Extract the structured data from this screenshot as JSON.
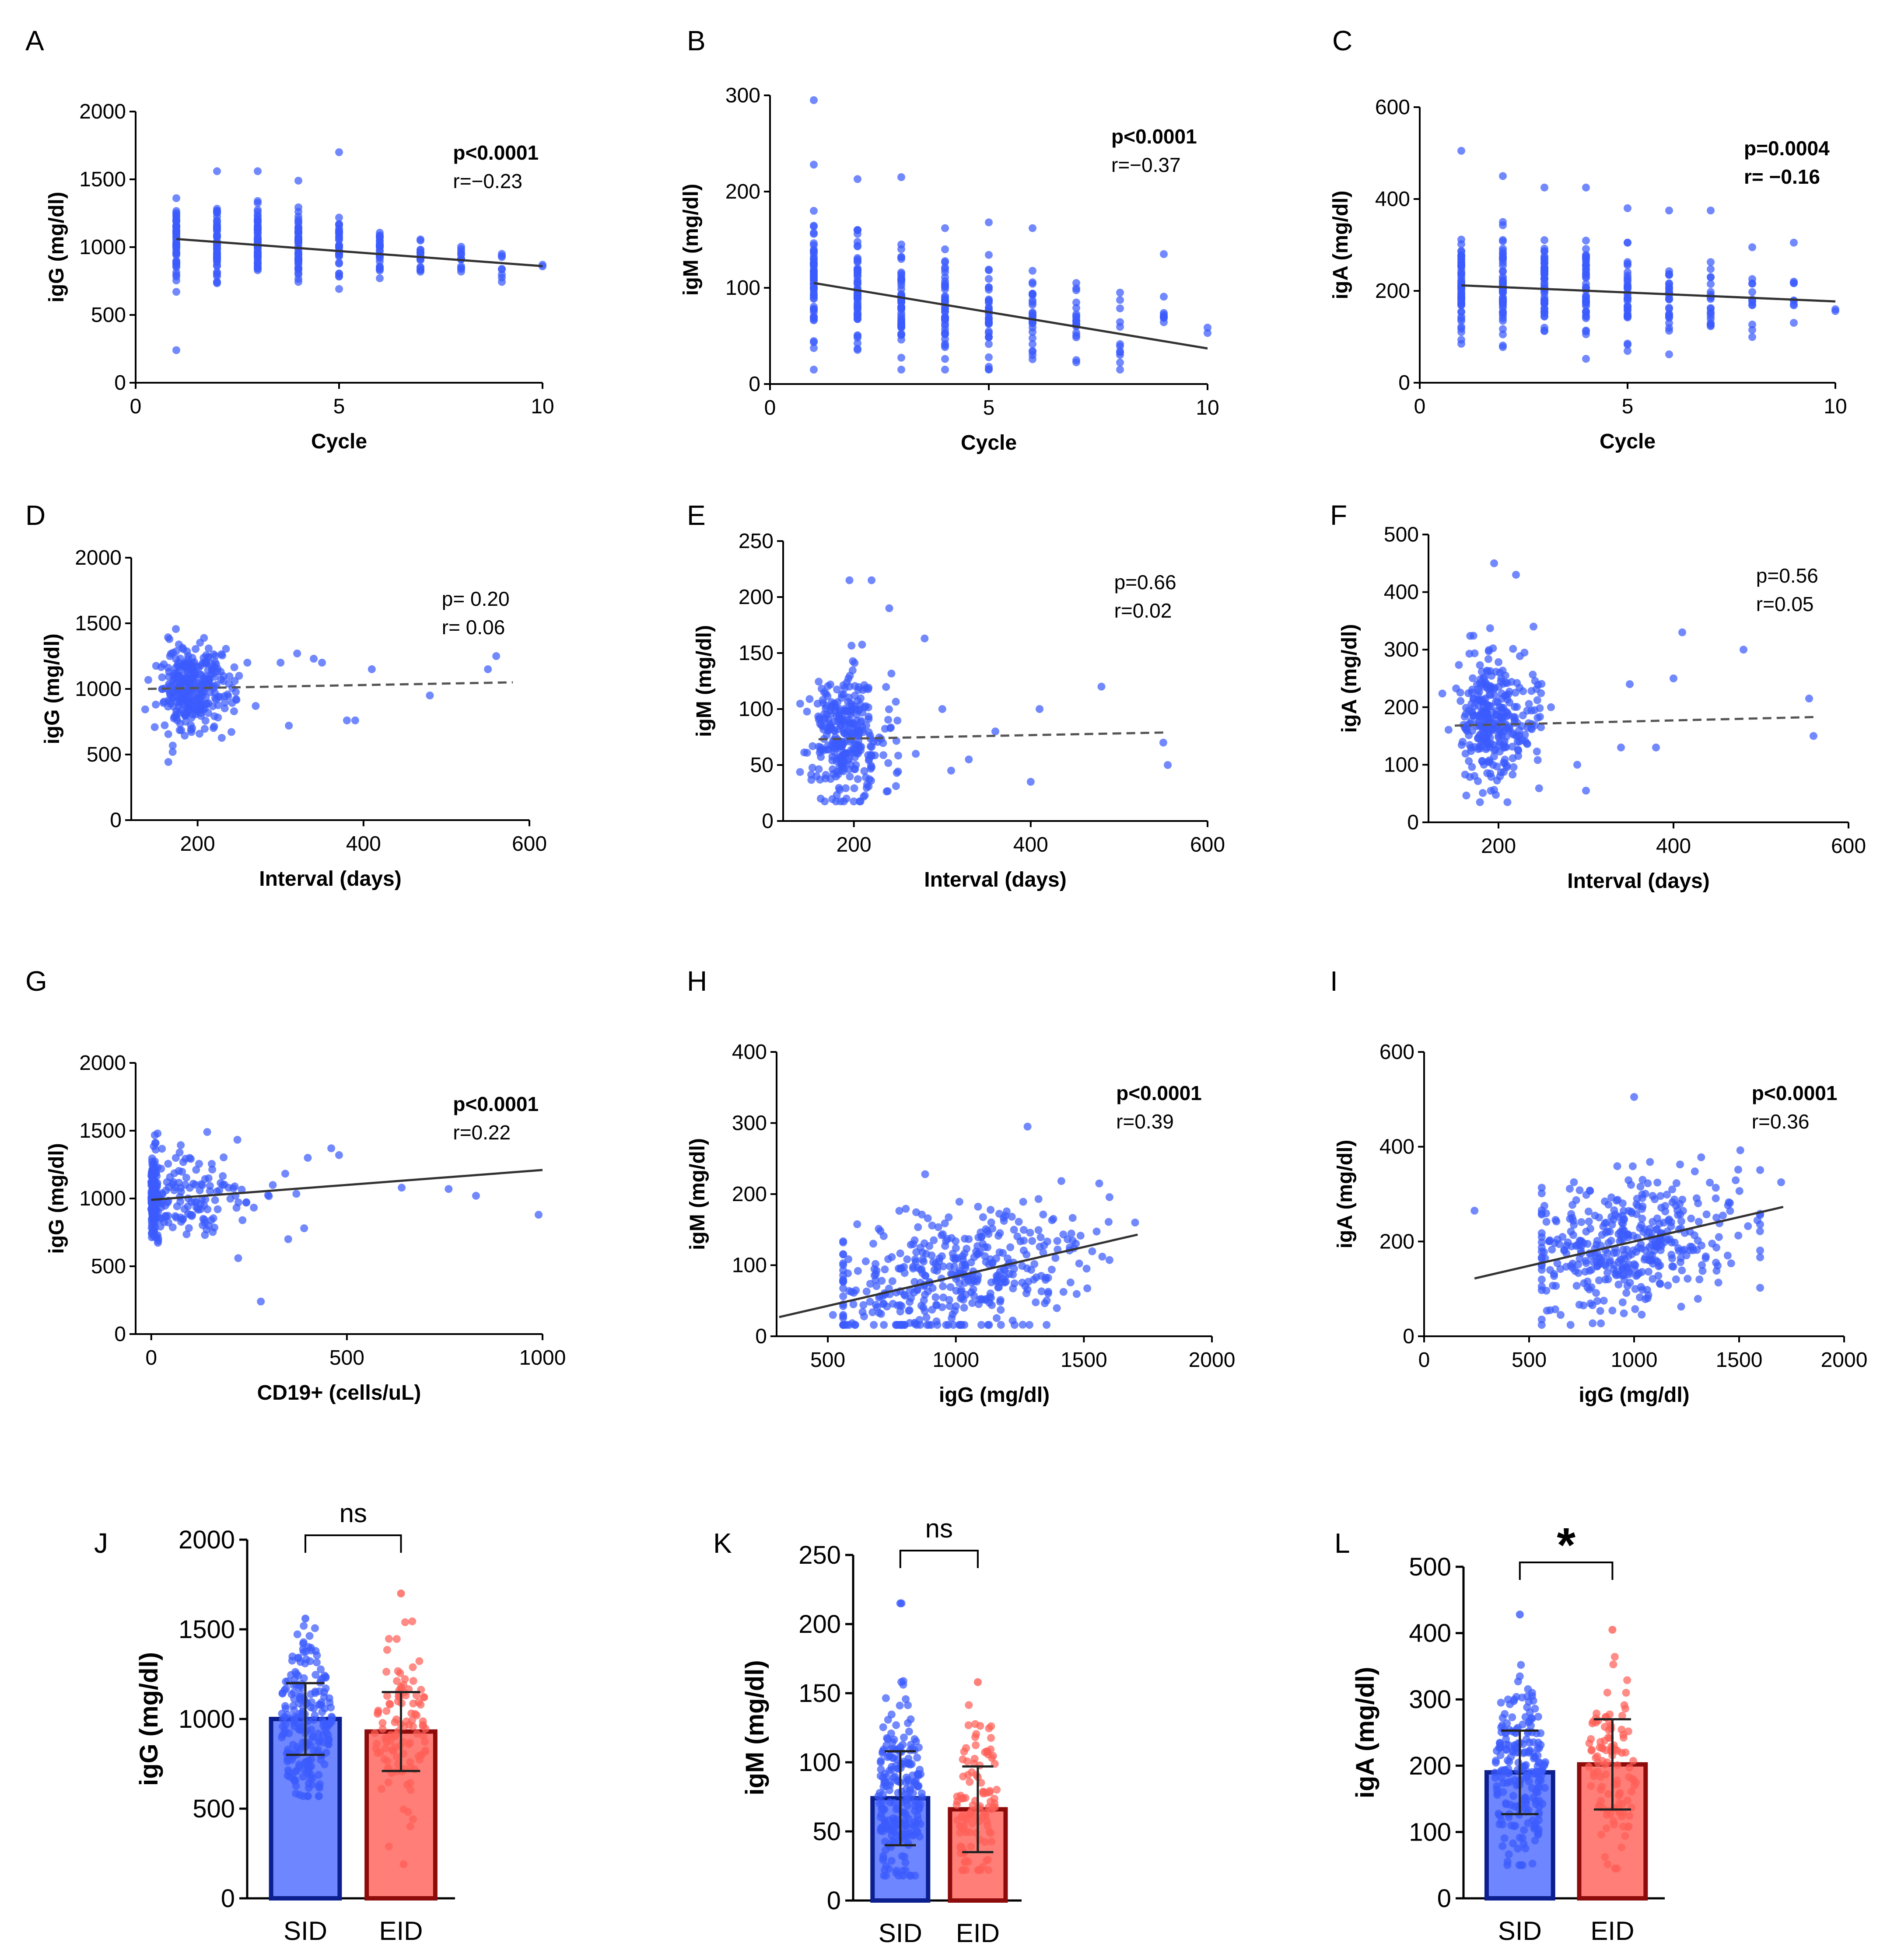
{
  "colors": {
    "sid_point": "#3b5bfd",
    "sid_bar": "#6e86ff",
    "sid_edge": "#0b1f8f",
    "eid_point": "#ff5f57",
    "eid_bar": "#ff7f78",
    "eid_edge": "#8e0b0b",
    "fit_line": "#333333",
    "fit_dashed": "#555555"
  },
  "chart_data": [
    {
      "id": "A",
      "type": "scatter",
      "panel_label": "A",
      "xlabel": "Cycle",
      "ylabel": "igG (mg/dl)",
      "xlim": [
        0,
        10
      ],
      "ylim": [
        0,
        2000
      ],
      "xticks": [
        0,
        5,
        10
      ],
      "yticks": [
        0,
        500,
        1000,
        1500,
        2000
      ],
      "fit": {
        "y_start": 1060,
        "y_end": 860,
        "x_start": 1,
        "x_end": 10,
        "dashed": false
      },
      "stat_p": "p<0.0001",
      "stat_r": "r=−0.23",
      "p_bold": true,
      "r_bold": false,
      "scatter": {
        "mode": "cycle",
        "xs": [
          1,
          2,
          3,
          4,
          5,
          6,
          7,
          8,
          9,
          10
        ],
        "center": [
          1060,
          1040,
          1020,
          1000,
          980,
          960,
          940,
          920,
          900,
          870
        ],
        "spread": [
          330,
          330,
          320,
          300,
          280,
          250,
          220,
          180,
          160,
          20
        ],
        "n": [
          60,
          60,
          55,
          45,
          35,
          28,
          20,
          12,
          8,
          2
        ],
        "outliers": [
          [
            1,
            240
          ],
          [
            2,
            1560
          ],
          [
            3,
            1560
          ],
          [
            5,
            1700
          ],
          [
            4,
            1490
          ]
        ]
      }
    },
    {
      "id": "B",
      "type": "scatter",
      "panel_label": "B",
      "xlabel": "Cycle",
      "ylabel": "igM (mg/dl)",
      "xlim": [
        0,
        10
      ],
      "ylim": [
        0,
        300
      ],
      "xticks": [
        0,
        5,
        10
      ],
      "yticks": [
        0,
        100,
        200,
        300
      ],
      "fit": {
        "y_start": 105,
        "y_end": 37,
        "x_start": 1,
        "x_end": 10,
        "dashed": false
      },
      "stat_p": "p<0.0001",
      "stat_r": "r=−0.37",
      "p_bold": true,
      "r_bold": false,
      "scatter": {
        "mode": "cycle",
        "xs": [
          1,
          2,
          3,
          4,
          5,
          6,
          7,
          8,
          9,
          10
        ],
        "center": [
          110,
          95,
          85,
          80,
          75,
          70,
          60,
          55,
          60,
          55
        ],
        "spread": [
          70,
          65,
          60,
          60,
          60,
          55,
          45,
          40,
          35,
          8
        ],
        "n": [
          60,
          60,
          55,
          45,
          35,
          28,
          20,
          12,
          8,
          2
        ],
        "outliers": [
          [
            1,
            295
          ],
          [
            1,
            228
          ],
          [
            2,
            213
          ],
          [
            3,
            215
          ],
          [
            4,
            162
          ],
          [
            5,
            168
          ],
          [
            6,
            162
          ],
          [
            9,
            135
          ]
        ]
      }
    },
    {
      "id": "C",
      "type": "scatter",
      "panel_label": "C",
      "xlabel": "Cycle",
      "ylabel": "igA (mg/dl)",
      "xlim": [
        0,
        10
      ],
      "ylim": [
        0,
        600
      ],
      "xticks": [
        0,
        5,
        10
      ],
      "yticks": [
        0,
        200,
        400,
        600
      ],
      "fit": {
        "y_start": 212,
        "y_end": 177,
        "x_start": 1,
        "x_end": 10,
        "dashed": false
      },
      "stat_p": "p=0.0004",
      "stat_r": "r= −0.16",
      "p_bold": true,
      "r_bold": true,
      "scatter": {
        "mode": "cycle",
        "xs": [
          1,
          2,
          3,
          4,
          5,
          6,
          7,
          8,
          9,
          10
        ],
        "center": [
          210,
          210,
          200,
          195,
          195,
          190,
          185,
          180,
          175,
          170
        ],
        "spread": [
          140,
          140,
          130,
          120,
          110,
          100,
          90,
          80,
          70,
          25
        ],
        "n": [
          60,
          60,
          55,
          45,
          35,
          28,
          20,
          12,
          8,
          2
        ],
        "outliers": [
          [
            1,
            505
          ],
          [
            2,
            450
          ],
          [
            3,
            425
          ],
          [
            4,
            425
          ],
          [
            5,
            380
          ],
          [
            6,
            375
          ],
          [
            7,
            375
          ],
          [
            8,
            295
          ],
          [
            9,
            305
          ]
        ]
      }
    },
    {
      "id": "D",
      "type": "scatter",
      "panel_label": "D",
      "xlabel": "Interval (days)",
      "ylabel": "igG (mg/dl)",
      "xlim": [
        120,
        600
      ],
      "ylim": [
        0,
        2000
      ],
      "xticks": [
        200,
        400,
        600
      ],
      "yticks": [
        0,
        500,
        1000,
        1500,
        2000
      ],
      "fit": {
        "y_start": 1000,
        "y_end": 1050,
        "x_start": 140,
        "x_end": 580,
        "dashed": true
      },
      "stat_p": "p= 0.20",
      "stat_r": "r= 0.06",
      "p_bold": false,
      "r_bold": false,
      "scatter": {
        "mode": "interval",
        "ycenter": 1000,
        "yspread": 330,
        "n": 320,
        "tail": [
          [
            250,
            1100
          ],
          [
            300,
            1200
          ],
          [
            320,
            1270
          ],
          [
            340,
            1230
          ],
          [
            350,
            1200
          ],
          [
            380,
            760
          ],
          [
            390,
            760
          ],
          [
            410,
            1150
          ],
          [
            480,
            950
          ],
          [
            550,
            1150
          ],
          [
            560,
            1250
          ],
          [
            270,
            870
          ],
          [
            310,
            720
          ],
          [
            260,
            1200
          ]
        ]
      }
    },
    {
      "id": "E",
      "type": "scatter",
      "panel_label": "E",
      "xlabel": "Interval (days)",
      "ylabel": "igM (mg/dl)",
      "xlim": [
        120,
        600
      ],
      "ylim": [
        0,
        250
      ],
      "xticks": [
        200,
        400,
        600
      ],
      "yticks": [
        0,
        50,
        100,
        150,
        200,
        250
      ],
      "fit": {
        "y_start": 73,
        "y_end": 79,
        "x_start": 160,
        "x_end": 550,
        "dashed": true
      },
      "stat_p": "p=0.66",
      "stat_r": "r=0.02",
      "p_bold": false,
      "r_bold": false,
      "scatter": {
        "mode": "interval",
        "ycenter": 75,
        "yspread": 55,
        "n": 320,
        "tail": [
          [
            195,
            215
          ],
          [
            220,
            215
          ],
          [
            240,
            190
          ],
          [
            280,
            163
          ],
          [
            300,
            100
          ],
          [
            330,
            55
          ],
          [
            360,
            80
          ],
          [
            400,
            35
          ],
          [
            410,
            100
          ],
          [
            480,
            120
          ],
          [
            550,
            70
          ],
          [
            555,
            50
          ],
          [
            270,
            60
          ],
          [
            310,
            45
          ]
        ]
      }
    },
    {
      "id": "F",
      "type": "scatter",
      "panel_label": "F",
      "xlabel": "Interval (days)",
      "ylabel": "igA (mg/dl)",
      "xlim": [
        120,
        600
      ],
      "ylim": [
        0,
        500
      ],
      "xticks": [
        200,
        400,
        600
      ],
      "yticks": [
        0,
        100,
        200,
        300,
        400,
        500
      ],
      "fit": {
        "y_start": 168,
        "y_end": 183,
        "x_start": 150,
        "x_end": 565,
        "dashed": true
      },
      "stat_p": "p=0.56",
      "stat_r": "r=0.05",
      "p_bold": false,
      "r_bold": false,
      "scatter": {
        "mode": "interval",
        "ycenter": 180,
        "yspread": 110,
        "n": 320,
        "tail": [
          [
            195,
            450
          ],
          [
            220,
            430
          ],
          [
            240,
            340
          ],
          [
            260,
            200
          ],
          [
            300,
            55
          ],
          [
            340,
            130
          ],
          [
            350,
            240
          ],
          [
            380,
            130
          ],
          [
            400,
            250
          ],
          [
            410,
            330
          ],
          [
            480,
            300
          ],
          [
            555,
            215
          ],
          [
            560,
            150
          ],
          [
            290,
            100
          ]
        ]
      }
    },
    {
      "id": "G",
      "type": "scatter",
      "panel_label": "G",
      "xlabel": "CD19+ (cells/uL)",
      "ylabel": "igG (mg/dl)",
      "xlim": [
        -40,
        1000
      ],
      "ylim": [
        0,
        2000
      ],
      "xticks": [
        0,
        500,
        1000
      ],
      "yticks": [
        0,
        500,
        1000,
        1500,
        2000
      ],
      "fit": {
        "y_start": 990,
        "y_end": 1210,
        "x_start": 0,
        "x_end": 1000,
        "dashed": false
      },
      "stat_p": "p<0.0001",
      "stat_r": "r=0.22",
      "p_bold": true,
      "r_bold": false,
      "scatter": {
        "mode": "cd19",
        "ycenter": 1000,
        "yspread": 330,
        "n": 300,
        "tail": [
          [
            460,
            1370
          ],
          [
            480,
            1320
          ],
          [
            640,
            1080
          ],
          [
            760,
            1070
          ],
          [
            830,
            1020
          ],
          [
            990,
            880
          ],
          [
            280,
            240
          ],
          [
            350,
            700
          ],
          [
            400,
            1300
          ]
        ]
      }
    },
    {
      "id": "H",
      "type": "scatter",
      "panel_label": "H",
      "xlabel": "igG (mg/dl)",
      "ylabel": "igM (mg/dl)",
      "xlim": [
        300,
        2000
      ],
      "ylim": [
        0,
        400
      ],
      "xticks": [
        500,
        1000,
        1500,
        2000
      ],
      "yticks": [
        0,
        100,
        200,
        300,
        400
      ],
      "fit": {
        "y_start": 27,
        "y_end": 143,
        "x_start": 310,
        "x_end": 1710,
        "dashed": false
      },
      "stat_p": "p<0.0001",
      "stat_r": "r=0.39",
      "p_bold": true,
      "r_bold": false,
      "scatter": {
        "mode": "corr",
        "xcenter": 1000,
        "xspread": 260,
        "slope": 0.083,
        "intercept": 0,
        "yspread": 45,
        "n": 420,
        "tail": [
          [
            1280,
            295
          ],
          [
            1560,
            215
          ],
          [
            880,
            228
          ],
          [
            1700,
            160
          ],
          [
            560,
            30
          ],
          [
            600,
            45
          ],
          [
            520,
            30
          ]
        ]
      }
    },
    {
      "id": "I",
      "type": "scatter",
      "panel_label": "I",
      "xlabel": "igG (mg/dl)",
      "ylabel": "igA (mg/dl)",
      "xlim": [
        0,
        2000
      ],
      "ylim": [
        0,
        600
      ],
      "xticks": [
        0,
        500,
        1000,
        1500,
        2000
      ],
      "yticks": [
        0,
        200,
        400,
        600
      ],
      "fit": {
        "y_start": 122,
        "y_end": 273,
        "x_start": 240,
        "x_end": 1710,
        "dashed": false
      },
      "stat_p": "p<0.0001",
      "stat_r": "r=0.36",
      "p_bold": true,
      "r_bold": false,
      "scatter": {
        "mode": "corr",
        "xcenter": 1000,
        "xspread": 260,
        "slope": 0.103,
        "intercept": 97,
        "yspread": 70,
        "n": 420,
        "tail": [
          [
            240,
            265
          ],
          [
            1000,
            505
          ],
          [
            1700,
            325
          ],
          [
            600,
            55
          ],
          [
            650,
            45
          ]
        ]
      }
    },
    {
      "id": "J",
      "type": "bar",
      "panel_label": "J",
      "categories": [
        "SID",
        "EID"
      ],
      "ylabel": "igG (mg/dl)",
      "ylim": [
        0,
        2000
      ],
      "yticks": [
        0,
        500,
        1000,
        1500,
        2000
      ],
      "means": [
        1000,
        930
      ],
      "sd": [
        200,
        220
      ],
      "ranges": [
        [
          570,
          1560
        ],
        [
          190,
          1700
        ]
      ],
      "n": [
        220,
        110
      ],
      "significance": "ns"
    },
    {
      "id": "K",
      "type": "bar",
      "panel_label": "K",
      "categories": [
        "SID",
        "EID"
      ],
      "ylabel": "igM (mg/dl)",
      "ylim": [
        0,
        250
      ],
      "yticks": [
        0,
        50,
        100,
        150,
        200,
        250
      ],
      "means": [
        74,
        66
      ],
      "sd": [
        34,
        31
      ],
      "ranges": [
        [
          18,
          215
        ],
        [
          22,
          158
        ]
      ],
      "n": [
        220,
        110
      ],
      "significance": "ns"
    },
    {
      "id": "L",
      "type": "bar",
      "panel_label": "L",
      "categories": [
        "SID",
        "EID"
      ],
      "ylabel": "igA (mg/dl)",
      "ylim": [
        0,
        500
      ],
      "yticks": [
        0,
        100,
        200,
        300,
        400,
        500
      ],
      "means": [
        190,
        202
      ],
      "sd": [
        63,
        68
      ],
      "ranges": [
        [
          50,
          428
        ],
        [
          45,
          405
        ]
      ],
      "n": [
        220,
        110
      ],
      "significance": "*"
    }
  ]
}
